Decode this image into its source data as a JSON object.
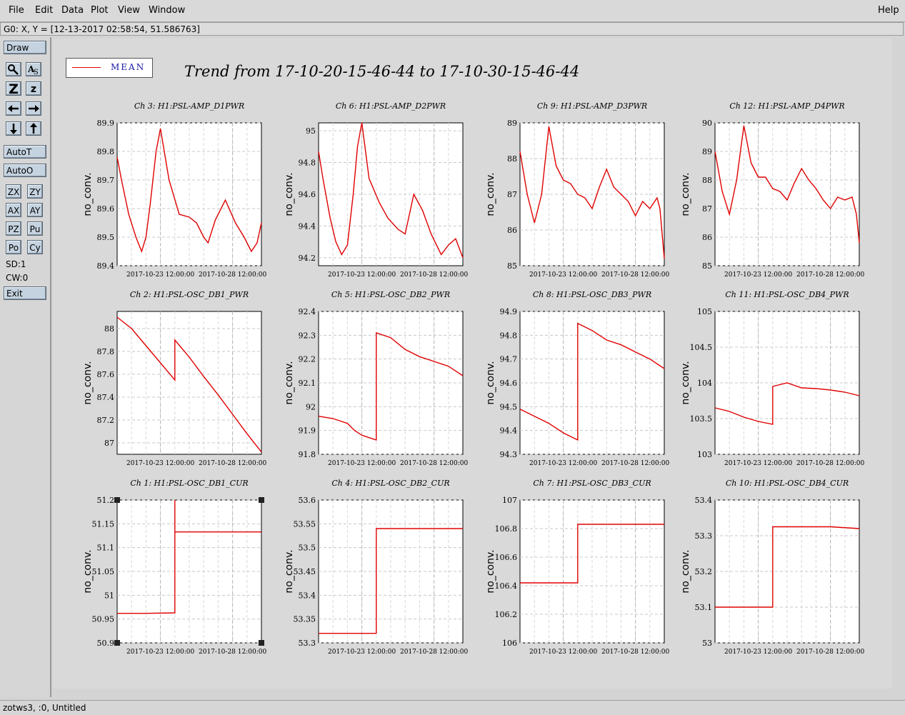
{
  "menubar": {
    "items": [
      "File",
      "Edit",
      "Data",
      "Plot",
      "View",
      "Window"
    ],
    "help": "Help"
  },
  "coord_readout": "G0: X, Y = [12-13-2017 02:58:54, 51.586763]",
  "toolbar": {
    "draw": "Draw",
    "zoom_tools": [
      "",
      "A",
      "Z",
      "z"
    ],
    "autoT": "AutoT",
    "autoO": "AutoO",
    "axis_buttons": [
      "ZX",
      "ZY",
      "AX",
      "AY",
      "PZ",
      "Pu",
      "Po",
      "Cy"
    ],
    "sd": "SD:1",
    "cw": "CW:0",
    "exit": "Exit"
  },
  "legend": {
    "label": "MEAN",
    "color": "#e00000"
  },
  "title": "Trend from 17-10-20-15-46-44 to 17-10-30-15-46-44",
  "status": "zotws3, :0, Untitled",
  "chart_data": [
    {
      "type": "line",
      "title": "Ch 3: H1:PSL-AMP_D1PWR",
      "ylabel": "no_conv.",
      "ylim": [
        89.4,
        89.9
      ],
      "yticks": [
        "89.4",
        "89.5",
        "89.6",
        "89.7",
        "89.8",
        "89.9"
      ],
      "xticks": [
        "2017-10-23 12:00:00",
        "2017-10-28 12:00:00"
      ],
      "x": [
        0,
        0.03,
        0.08,
        0.13,
        0.17,
        0.2,
        0.23,
        0.27,
        0.3,
        0.36,
        0.43,
        0.5,
        0.55,
        0.6,
        0.63,
        0.68,
        0.75,
        0.82,
        0.88,
        0.93,
        0.97,
        1
      ],
      "series": [
        {
          "name": "MEAN",
          "values": [
            89.78,
            89.7,
            89.58,
            89.5,
            89.45,
            89.5,
            89.62,
            89.8,
            89.88,
            89.7,
            89.58,
            89.57,
            89.55,
            89.5,
            89.48,
            89.56,
            89.63,
            89.55,
            89.5,
            89.45,
            89.48,
            89.55
          ]
        }
      ]
    },
    {
      "type": "line",
      "title": "Ch 6: H1:PSL-AMP_D2PWR",
      "ylabel": "no_conv.",
      "ylim": [
        94.15,
        95.05
      ],
      "yticks": [
        "94.2",
        "94.4",
        "94.6",
        "94.8",
        "95"
      ],
      "xticks": [
        "2017-10-23 12:00:00",
        "2017-10-28 12:00:00"
      ],
      "x": [
        0,
        0.03,
        0.08,
        0.12,
        0.16,
        0.2,
        0.24,
        0.27,
        0.3,
        0.35,
        0.42,
        0.48,
        0.55,
        0.6,
        0.66,
        0.72,
        0.78,
        0.85,
        0.9,
        0.95,
        1
      ],
      "series": [
        {
          "name": "MEAN",
          "values": [
            94.87,
            94.7,
            94.45,
            94.3,
            94.22,
            94.28,
            94.6,
            94.9,
            95.05,
            94.7,
            94.55,
            94.45,
            94.38,
            94.35,
            94.6,
            94.5,
            94.35,
            94.22,
            94.28,
            94.32,
            94.2
          ]
        }
      ]
    },
    {
      "type": "line",
      "title": "Ch 9: H1:PSL-AMP_D3PWR",
      "ylabel": "no_conv.",
      "ylim": [
        85,
        89
      ],
      "yticks": [
        "85",
        "86",
        "87",
        "88",
        "89"
      ],
      "xticks": [
        "2017-10-23 12:00:00",
        "2017-10-28 12:00:00"
      ],
      "x": [
        0,
        0.05,
        0.1,
        0.15,
        0.2,
        0.25,
        0.3,
        0.35,
        0.4,
        0.45,
        0.5,
        0.55,
        0.6,
        0.65,
        0.7,
        0.75,
        0.8,
        0.85,
        0.9,
        0.95,
        0.97,
        1
      ],
      "series": [
        {
          "name": "MEAN",
          "values": [
            88.2,
            87,
            86.2,
            87,
            88.9,
            87.8,
            87.4,
            87.3,
            87,
            86.9,
            86.6,
            87.2,
            87.7,
            87.2,
            87,
            86.8,
            86.4,
            86.8,
            86.6,
            86.9,
            86.6,
            85.2
          ]
        }
      ]
    },
    {
      "type": "line",
      "title": "Ch 12: H1:PSL-AMP_D4PWR",
      "ylabel": "no_conv.",
      "ylim": [
        85,
        90
      ],
      "yticks": [
        "85",
        "86",
        "87",
        "88",
        "89",
        "90"
      ],
      "xticks": [
        "2017-10-23 12:00:00",
        "2017-10-28 12:00:00"
      ],
      "x": [
        0,
        0.05,
        0.1,
        0.15,
        0.2,
        0.25,
        0.3,
        0.35,
        0.4,
        0.45,
        0.5,
        0.55,
        0.6,
        0.65,
        0.7,
        0.75,
        0.8,
        0.85,
        0.9,
        0.95,
        0.98,
        1
      ],
      "series": [
        {
          "name": "MEAN",
          "values": [
            89,
            87.6,
            86.8,
            88,
            89.9,
            88.6,
            88.1,
            88.1,
            87.7,
            87.6,
            87.3,
            87.9,
            88.4,
            88,
            87.7,
            87.3,
            87,
            87.4,
            87.3,
            87.4,
            86.8,
            85.8
          ]
        }
      ]
    },
    {
      "type": "line",
      "title": "Ch 2: H1:PSL-OSC_DB1_PWR",
      "ylabel": "no_conv.",
      "ylim": [
        86.9,
        88.15
      ],
      "yticks": [
        "87",
        "87.2",
        "87.4",
        "87.6",
        "87.8",
        "88"
      ],
      "xticks": [
        "2017-10-23 12:00:00",
        "2017-10-28 12:00:00"
      ],
      "x": [
        0,
        0.1,
        0.2,
        0.3,
        0.4,
        0.4,
        0.5,
        0.6,
        0.7,
        0.8,
        0.9,
        1
      ],
      "series": [
        {
          "name": "MEAN",
          "values": [
            88.1,
            88,
            87.85,
            87.7,
            87.55,
            87.9,
            87.75,
            87.58,
            87.42,
            87.25,
            87.08,
            86.92
          ]
        }
      ]
    },
    {
      "type": "line",
      "title": "Ch 5: H1:PSL-OSC_DB2_PWR",
      "ylabel": "no_conv.",
      "ylim": [
        91.8,
        92.4
      ],
      "yticks": [
        "91.8",
        "91.9",
        "92",
        "92.1",
        "92.2",
        "92.3",
        "92.4"
      ],
      "xticks": [
        "2017-10-23 12:00:00",
        "2017-10-28 12:00:00"
      ],
      "x": [
        0,
        0.1,
        0.2,
        0.25,
        0.3,
        0.35,
        0.4,
        0.4,
        0.5,
        0.6,
        0.7,
        0.8,
        0.9,
        1
      ],
      "series": [
        {
          "name": "MEAN",
          "values": [
            91.96,
            91.95,
            91.93,
            91.9,
            91.88,
            91.87,
            91.86,
            92.31,
            92.29,
            92.24,
            92.21,
            92.19,
            92.17,
            92.13
          ]
        }
      ]
    },
    {
      "type": "line",
      "title": "Ch 8: H1:PSL-OSC_DB3_PWR",
      "ylabel": "no_conv.",
      "ylim": [
        94.3,
        94.9
      ],
      "yticks": [
        "94.3",
        "94.4",
        "94.5",
        "94.6",
        "94.7",
        "94.8",
        "94.9"
      ],
      "xticks": [
        "2017-10-23 12:00:00",
        "2017-10-28 12:00:00"
      ],
      "x": [
        0,
        0.1,
        0.2,
        0.3,
        0.4,
        0.4,
        0.5,
        0.6,
        0.7,
        0.8,
        0.9,
        1
      ],
      "series": [
        {
          "name": "MEAN",
          "values": [
            94.49,
            94.46,
            94.43,
            94.39,
            94.36,
            94.85,
            94.82,
            94.78,
            94.76,
            94.73,
            94.7,
            94.66
          ]
        }
      ]
    },
    {
      "type": "line",
      "title": "Ch 11: H1:PSL-OSC_DB4_PWR",
      "ylabel": "no_conv.",
      "ylim": [
        103,
        105
      ],
      "yticks": [
        "103",
        "103.5",
        "104",
        "104.5",
        "105"
      ],
      "xticks": [
        "2017-10-23 12:00:00",
        "2017-10-28 12:00:00"
      ],
      "x": [
        0,
        0.1,
        0.2,
        0.3,
        0.4,
        0.4,
        0.5,
        0.6,
        0.7,
        0.8,
        0.9,
        1
      ],
      "series": [
        {
          "name": "MEAN",
          "values": [
            103.65,
            103.6,
            103.52,
            103.46,
            103.42,
            103.95,
            104,
            103.93,
            103.92,
            103.9,
            103.87,
            103.82
          ]
        }
      ]
    },
    {
      "type": "line",
      "title": "Ch 1: H1:PSL-OSC_DB1_CUR",
      "ylabel": "no_conv.",
      "ylim": [
        50.9,
        51.2
      ],
      "yticks": [
        "50.9",
        "50.95",
        "51",
        "51.05",
        "51.1",
        "51.15",
        "51.2"
      ],
      "xticks": [
        "2017-10-23 12:00:00",
        "2017-10-28 12:00:00"
      ],
      "x": [
        0,
        0.2,
        0.4,
        0.4,
        0.4,
        0.6,
        0.8,
        1
      ],
      "series": [
        {
          "name": "MEAN",
          "values": [
            50.962,
            50.962,
            50.963,
            51.2,
            51.133,
            51.133,
            51.133,
            51.133
          ]
        }
      ]
    },
    {
      "type": "line",
      "title": "Ch 4: H1:PSL-OSC_DB2_CUR",
      "ylabel": "no_conv.",
      "ylim": [
        53.3,
        53.6
      ],
      "yticks": [
        "53.3",
        "53.35",
        "53.4",
        "53.45",
        "53.5",
        "53.55",
        "53.6"
      ],
      "xticks": [
        "2017-10-23 12:00:00",
        "2017-10-28 12:00:00"
      ],
      "x": [
        0,
        0.4,
        0.4,
        0.6,
        0.8,
        1
      ],
      "series": [
        {
          "name": "MEAN",
          "values": [
            53.32,
            53.32,
            53.54,
            53.54,
            53.54,
            53.54
          ]
        }
      ]
    },
    {
      "type": "line",
      "title": "Ch 7: H1:PSL-OSC_DB3_CUR",
      "ylabel": "no_conv.",
      "ylim": [
        106,
        107
      ],
      "yticks": [
        "106",
        "106.2",
        "106.4",
        "106.6",
        "106.8",
        "107"
      ],
      "xticks": [
        "2017-10-23 12:00:00",
        "2017-10-28 12:00:00"
      ],
      "x": [
        0,
        0.4,
        0.4,
        0.6,
        0.8,
        1
      ],
      "series": [
        {
          "name": "MEAN",
          "values": [
            106.42,
            106.42,
            106.83,
            106.83,
            106.83,
            106.83
          ]
        }
      ]
    },
    {
      "type": "line",
      "title": "Ch 10: H1:PSL-OSC_DB4_CUR",
      "ylabel": "no_conv.",
      "ylim": [
        53,
        53.4
      ],
      "yticks": [
        "53",
        "53.1",
        "53.2",
        "53.3",
        "53.4"
      ],
      "xticks": [
        "2017-10-23 12:00:00",
        "2017-10-28 12:00:00"
      ],
      "x": [
        0,
        0.4,
        0.4,
        0.6,
        0.8,
        1
      ],
      "series": [
        {
          "name": "MEAN",
          "values": [
            53.1,
            53.1,
            53.325,
            53.325,
            53.325,
            53.32
          ]
        }
      ]
    }
  ]
}
